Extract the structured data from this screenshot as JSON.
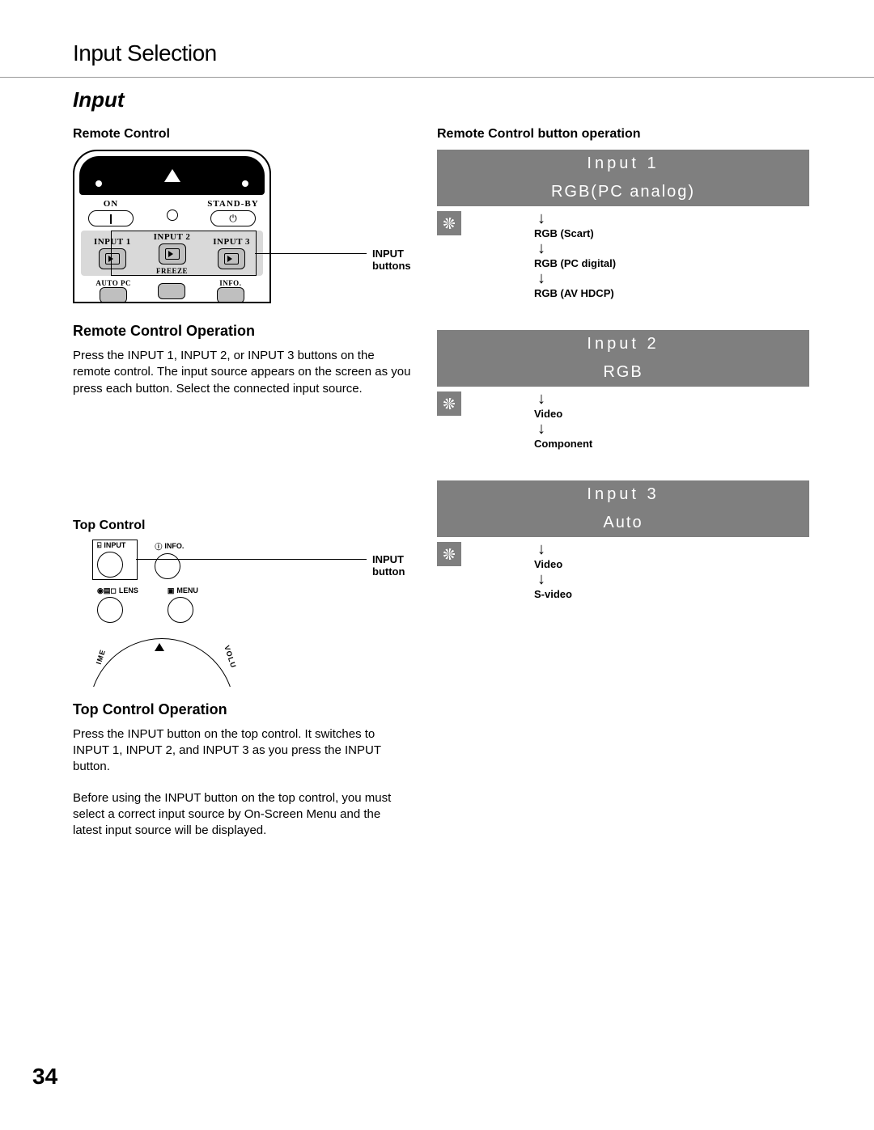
{
  "page_title": "Input Selection",
  "section_title": "Input",
  "page_number": "34",
  "colors": {
    "osd_gray": "#7f7f7f",
    "text_white": "#ffffff",
    "rule_gray": "#999999"
  },
  "left": {
    "remote_heading": "Remote Control",
    "remote_callout": "INPUT buttons",
    "remote_labels": {
      "on": "ON",
      "standby": "STAND-BY",
      "input1": "INPUT 1",
      "input2": "INPUT 2",
      "input3": "INPUT 3",
      "freeze": "FREEZE",
      "autopc": "AUTO PC",
      "info": "INFO."
    },
    "remote_op_heading": "Remote Control Operation",
    "remote_op_body": "Press the INPUT 1, INPUT 2, or INPUT 3 buttons on the remote control. The input source appears on the screen as you press each button. Select the connected input source.",
    "top_heading": "Top Control",
    "top_callout": "INPUT button",
    "top_labels": {
      "input": "INPUT",
      "info": "INFO.",
      "lens": "LENS",
      "menu": "MENU",
      "volume_left": "IME",
      "volume_right": "VOLU"
    },
    "top_op_heading": "Top Control Operation",
    "top_op_body_1": "Press the INPUT button on the top control. It switches to INPUT 1, INPUT 2, and INPUT 3 as you press the INPUT button.",
    "top_op_body_2": "Before using the INPUT button on the top control, you must select a correct input source by On-Screen Menu and the latest input source will be displayed."
  },
  "right": {
    "heading": "Remote Control button operation",
    "blocks": [
      {
        "title": "Input 1",
        "subtitle": "RGB(PC analog)",
        "options": [
          "RGB (Scart)",
          "RGB (PC digital)",
          "RGB (AV HDCP)"
        ]
      },
      {
        "title": "Input 2",
        "subtitle": "RGB",
        "options": [
          "Video",
          "Component"
        ]
      },
      {
        "title": "Input 3",
        "subtitle": "Auto",
        "options": [
          "Video",
          "S-video"
        ]
      }
    ]
  }
}
